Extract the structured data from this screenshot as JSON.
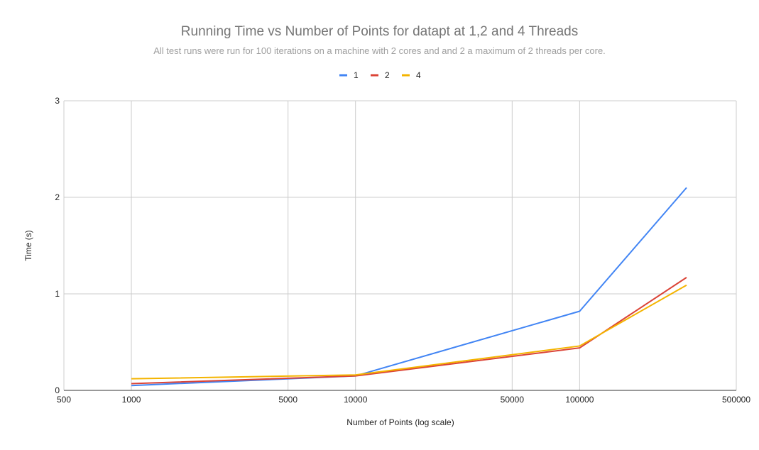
{
  "chart_data": {
    "type": "line",
    "title": "Running Time vs Number of Points for datapt at 1,2 and 4 Threads",
    "subtitle": "All test runs were run for 100 iterations on a machine with 2 cores and and 2 a maximum of 2 threads per core.",
    "xlabel": "Number of Points (log scale)",
    "ylabel": "Time (s)",
    "x_scale": "log",
    "xlim": [
      500,
      500000
    ],
    "ylim": [
      0,
      3
    ],
    "x_ticks": [
      "500",
      "1000",
      "5000",
      "10000",
      "50000",
      "100000",
      "500000"
    ],
    "y_ticks": [
      "0",
      "1",
      "2",
      "3"
    ],
    "grid": true,
    "legend_position": "top",
    "x": [
      1000,
      10000,
      100000,
      300000
    ],
    "series": [
      {
        "name": "1",
        "color": "#4285f4",
        "values": [
          0.05,
          0.15,
          0.82,
          2.1
        ]
      },
      {
        "name": "2",
        "color": "#db4437",
        "values": [
          0.07,
          0.15,
          0.44,
          1.17
        ]
      },
      {
        "name": "4",
        "color": "#f4b400",
        "values": [
          0.12,
          0.16,
          0.46,
          1.09
        ]
      }
    ]
  }
}
